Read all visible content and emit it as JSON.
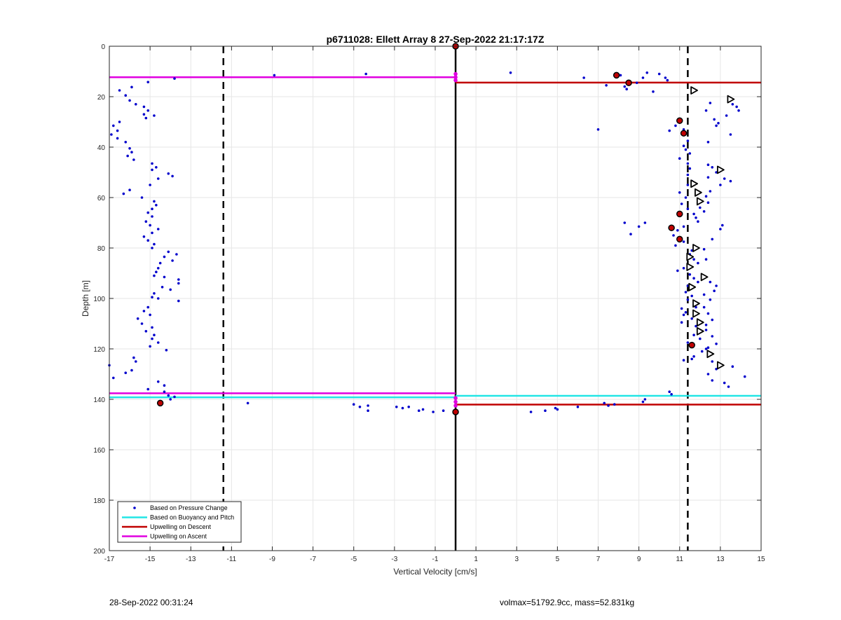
{
  "chart_data": {
    "type": "scatter",
    "title": "p6711028: Ellett Array 8 27-Sep-2022 21:17:17Z",
    "xlabel": "Vertical Velocity [cm/s]",
    "ylabel": "Depth [m]",
    "xlim": [
      -17,
      15
    ],
    "ylim": [
      0,
      200
    ],
    "y_reversed": true,
    "xticks": [
      -17,
      -15,
      -13,
      -11,
      -9,
      -7,
      -5,
      -3,
      -1,
      1,
      3,
      5,
      7,
      9,
      11,
      13,
      15
    ],
    "yticks": [
      0,
      20,
      40,
      60,
      80,
      100,
      120,
      140,
      160,
      180,
      200
    ],
    "grid": true,
    "legend_position": "bottom-left",
    "legend": [
      {
        "label": "Based on Pressure Change",
        "color": "#0000cc",
        "style": "dot"
      },
      {
        "label": "Based on Buoyancy and Pitch",
        "color": "#22e5e5",
        "style": "line"
      },
      {
        "label": "Upwelling on Descent",
        "color": "#c00000",
        "style": "line"
      },
      {
        "label": "Upwelling on Ascent",
        "color": "#e000e0",
        "style": "line"
      }
    ],
    "reference_lines": {
      "dashed_x": [
        -11.4,
        11.4
      ],
      "zero_x": 0
    },
    "hlines": [
      {
        "series": "Upwelling on Ascent",
        "color": "#e000e0",
        "x": [
          -17,
          0
        ],
        "y": 12.3
      },
      {
        "series": "Upwelling on Descent",
        "color": "#c00000",
        "x": [
          0,
          15
        ],
        "y": 14.4
      },
      {
        "series": "Upwelling on Ascent",
        "color": "#e000e0",
        "x": [
          -17,
          0
        ],
        "y": 137.6
      },
      {
        "series": "Based on Buoyancy and Pitch",
        "color": "#22e5e5",
        "x": [
          -17,
          0
        ],
        "y": 139.2
      },
      {
        "series": "Based on Buoyancy and Pitch",
        "color": "#22e5e5",
        "x": [
          0,
          15
        ],
        "y": 138.6
      },
      {
        "series": "Upwelling on Descent",
        "color": "#c00000",
        "x": [
          0,
          15
        ],
        "y": 142.1
      }
    ],
    "ascent_markers": [
      {
        "x": 0,
        "y": 11.0
      },
      {
        "x": 0,
        "y": 12.3
      },
      {
        "x": 0,
        "y": 13.5
      },
      {
        "x": 0,
        "y": 139.5
      },
      {
        "x": 0,
        "y": 141.0
      },
      {
        "x": 0,
        "y": 142.5
      }
    ],
    "descent_markers": [
      {
        "x": 0,
        "y": 0
      },
      {
        "x": 7.9,
        "y": 11.5
      },
      {
        "x": 8.5,
        "y": 14.5
      },
      {
        "x": 11.0,
        "y": 29.5
      },
      {
        "x": 11.2,
        "y": 34.5
      },
      {
        "x": 11.0,
        "y": 66.5
      },
      {
        "x": 10.6,
        "y": 72.0
      },
      {
        "x": 11.0,
        "y": 76.5
      },
      {
        "x": 11.6,
        "y": 118.5
      },
      {
        "x": -14.5,
        "y": 141.5
      },
      {
        "x": 0,
        "y": 145.0
      }
    ],
    "buoyancy_markers": [
      {
        "x": 11.7,
        "y": 17.5
      },
      {
        "x": 13.5,
        "y": 21.0
      },
      {
        "x": 13.0,
        "y": 49.0
      },
      {
        "x": 11.7,
        "y": 54.5
      },
      {
        "x": 11.9,
        "y": 58.0
      },
      {
        "x": 12.0,
        "y": 61.5
      },
      {
        "x": 11.8,
        "y": 80.0
      },
      {
        "x": 11.5,
        "y": 83.5
      },
      {
        "x": 11.5,
        "y": 87.5
      },
      {
        "x": 12.2,
        "y": 91.5
      },
      {
        "x": 11.6,
        "y": 95.5
      },
      {
        "x": 11.8,
        "y": 102.0
      },
      {
        "x": 11.8,
        "y": 106.0
      },
      {
        "x": 12.0,
        "y": 109.5
      },
      {
        "x": 12.0,
        "y": 113.0
      },
      {
        "x": 12.5,
        "y": 122.0
      },
      {
        "x": 13.0,
        "y": 126.5
      }
    ],
    "pressure_points": [
      [
        -13.8,
        12.8
      ],
      [
        -15.1,
        14.2
      ],
      [
        -16.5,
        17.5
      ],
      [
        -15.9,
        16.2
      ],
      [
        -16.2,
        19.5
      ],
      [
        -16.0,
        21.5
      ],
      [
        -15.7,
        23.0
      ],
      [
        -15.3,
        24.0
      ],
      [
        -15.1,
        25.5
      ],
      [
        -15.3,
        27.0
      ],
      [
        -14.8,
        27.5
      ],
      [
        -15.2,
        28.5
      ],
      [
        -16.5,
        30.0
      ],
      [
        -16.8,
        31.5
      ],
      [
        -16.6,
        33.5
      ],
      [
        -16.9,
        35.0
      ],
      [
        -16.6,
        36.5
      ],
      [
        -16.2,
        38.0
      ],
      [
        -16.0,
        40.5
      ],
      [
        -15.9,
        42.0
      ],
      [
        -16.1,
        43.5
      ],
      [
        -15.8,
        45.0
      ],
      [
        -14.9,
        46.5
      ],
      [
        -14.7,
        48.0
      ],
      [
        -14.9,
        49.0
      ],
      [
        -14.1,
        50.5
      ],
      [
        -13.9,
        51.5
      ],
      [
        -14.6,
        52.5
      ],
      [
        -15.0,
        55.0
      ],
      [
        -16.0,
        57.0
      ],
      [
        -16.3,
        58.5
      ],
      [
        -15.4,
        60.0
      ],
      [
        -14.8,
        61.5
      ],
      [
        -14.7,
        63.0
      ],
      [
        -14.9,
        64.5
      ],
      [
        -15.1,
        66.0
      ],
      [
        -14.9,
        67.5
      ],
      [
        -15.2,
        69.5
      ],
      [
        -15.0,
        71.0
      ],
      [
        -14.6,
        72.5
      ],
      [
        -14.9,
        74.0
      ],
      [
        -15.3,
        75.5
      ],
      [
        -15.1,
        77.0
      ],
      [
        -14.8,
        78.5
      ],
      [
        -14.9,
        80.0
      ],
      [
        -14.1,
        81.5
      ],
      [
        -13.7,
        82.5
      ],
      [
        -14.3,
        83.5
      ],
      [
        -13.9,
        85.0
      ],
      [
        -14.5,
        86.0
      ],
      [
        -14.6,
        88.0
      ],
      [
        -14.7,
        89.5
      ],
      [
        -14.8,
        91.0
      ],
      [
        -14.3,
        91.5
      ],
      [
        -13.6,
        92.5
      ],
      [
        -13.6,
        94.0
      ],
      [
        -14.4,
        95.5
      ],
      [
        -14.0,
        96.5
      ],
      [
        -14.8,
        98.0
      ],
      [
        -14.9,
        99.5
      ],
      [
        -14.6,
        100.0
      ],
      [
        -13.6,
        101.0
      ],
      [
        -15.1,
        103.5
      ],
      [
        -15.3,
        105.0
      ],
      [
        -15.0,
        106.5
      ],
      [
        -15.6,
        108.0
      ],
      [
        -15.4,
        110.0
      ],
      [
        -14.9,
        111.5
      ],
      [
        -15.2,
        113.0
      ],
      [
        -14.8,
        114.5
      ],
      [
        -14.9,
        116.0
      ],
      [
        -14.6,
        117.5
      ],
      [
        -15.0,
        119.0
      ],
      [
        -14.2,
        120.5
      ],
      [
        -15.8,
        123.5
      ],
      [
        -15.7,
        125.0
      ],
      [
        -17.0,
        126.5
      ],
      [
        -15.9,
        128.5
      ],
      [
        -16.2,
        129.5
      ],
      [
        -16.8,
        131.5
      ],
      [
        -14.6,
        133.0
      ],
      [
        -14.3,
        134.5
      ],
      [
        -15.1,
        136.0
      ],
      [
        -14.3,
        137.0
      ],
      [
        -14.1,
        138.5
      ],
      [
        -14.0,
        140.0
      ],
      [
        -13.8,
        139.0
      ],
      [
        -10.2,
        141.5
      ],
      [
        -8.9,
        11.5
      ],
      [
        -4.4,
        11.0
      ],
      [
        -5.0,
        142.0
      ],
      [
        -4.7,
        143.0
      ],
      [
        -4.3,
        142.5
      ],
      [
        -4.3,
        144.5
      ],
      [
        -2.9,
        143.0
      ],
      [
        -2.6,
        143.5
      ],
      [
        -2.3,
        143.0
      ],
      [
        -1.8,
        144.5
      ],
      [
        -1.6,
        144.0
      ],
      [
        -1.1,
        145.0
      ],
      [
        -0.6,
        144.5
      ],
      [
        2.7,
        10.5
      ],
      [
        3.7,
        145.0
      ],
      [
        4.4,
        144.5
      ],
      [
        4.9,
        143.5
      ],
      [
        5.0,
        144.0
      ],
      [
        6.0,
        143.0
      ],
      [
        6.3,
        12.5
      ],
      [
        7.0,
        33.0
      ],
      [
        7.3,
        141.5
      ],
      [
        7.5,
        142.5
      ],
      [
        7.8,
        142.0
      ],
      [
        7.4,
        15.5
      ],
      [
        8.1,
        11.5
      ],
      [
        8.3,
        16.0
      ],
      [
        8.4,
        17.0
      ],
      [
        8.9,
        14.5
      ],
      [
        9.2,
        12.5
      ],
      [
        9.4,
        10.5
      ],
      [
        9.7,
        18.0
      ],
      [
        10.0,
        11.0
      ],
      [
        10.3,
        12.5
      ],
      [
        10.4,
        13.5
      ],
      [
        9.2,
        141.0
      ],
      [
        9.3,
        140.0
      ],
      [
        10.5,
        137.0
      ],
      [
        10.6,
        138.0
      ],
      [
        8.3,
        70.0
      ],
      [
        8.6,
        74.5
      ],
      [
        9.0,
        71.5
      ],
      [
        9.3,
        70.0
      ],
      [
        10.5,
        33.5
      ],
      [
        10.8,
        31.5
      ],
      [
        11.2,
        33.0
      ],
      [
        11.4,
        37.5
      ],
      [
        11.2,
        39.5
      ],
      [
        11.3,
        41.0
      ],
      [
        11.5,
        42.5
      ],
      [
        11.0,
        44.5
      ],
      [
        11.4,
        46.5
      ],
      [
        11.5,
        48.5
      ],
      [
        11.4,
        51.0
      ],
      [
        11.6,
        53.5
      ],
      [
        11.4,
        55.0
      ],
      [
        11.0,
        58.0
      ],
      [
        11.3,
        60.0
      ],
      [
        11.1,
        62.5
      ],
      [
        11.4,
        64.5
      ],
      [
        11.7,
        66.5
      ],
      [
        11.8,
        68.0
      ],
      [
        11.9,
        69.5
      ],
      [
        11.2,
        71.5
      ],
      [
        10.9,
        73.0
      ],
      [
        10.7,
        75.0
      ],
      [
        11.2,
        77.5
      ],
      [
        10.8,
        79.0
      ],
      [
        11.6,
        81.0
      ],
      [
        11.5,
        82.5
      ],
      [
        11.7,
        84.5
      ],
      [
        11.9,
        86.0
      ],
      [
        11.2,
        88.0
      ],
      [
        10.9,
        89.0
      ],
      [
        11.5,
        90.5
      ],
      [
        11.7,
        92.0
      ],
      [
        11.9,
        93.5
      ],
      [
        11.4,
        95.0
      ],
      [
        11.3,
        97.5
      ],
      [
        11.6,
        99.0
      ],
      [
        11.4,
        100.5
      ],
      [
        11.8,
        103.5
      ],
      [
        11.1,
        104.0
      ],
      [
        11.3,
        105.5
      ],
      [
        11.2,
        106.5
      ],
      [
        11.6,
        108.0
      ],
      [
        11.1,
        109.5
      ],
      [
        11.8,
        111.0
      ],
      [
        12.3,
        112.5
      ],
      [
        11.7,
        114.5
      ],
      [
        12.0,
        116.0
      ],
      [
        11.4,
        117.5
      ],
      [
        12.4,
        119.5
      ],
      [
        12.1,
        121.0
      ],
      [
        11.7,
        123.0
      ],
      [
        11.2,
        124.5
      ],
      [
        11.6,
        124.0
      ],
      [
        12.6,
        125.0
      ],
      [
        12.8,
        128.0
      ],
      [
        12.4,
        130.0
      ],
      [
        12.6,
        132.5
      ],
      [
        13.2,
        133.5
      ],
      [
        13.4,
        135.0
      ],
      [
        13.6,
        127.0
      ],
      [
        14.2,
        131.0
      ],
      [
        12.5,
        22.5
      ],
      [
        12.3,
        25.5
      ],
      [
        13.8,
        24.0
      ],
      [
        13.9,
        25.5
      ],
      [
        13.6,
        23.0
      ],
      [
        12.7,
        29.0
      ],
      [
        12.9,
        30.5
      ],
      [
        12.8,
        31.5
      ],
      [
        13.3,
        27.5
      ],
      [
        13.5,
        35.0
      ],
      [
        12.4,
        38.0
      ],
      [
        12.4,
        47.0
      ],
      [
        12.6,
        48.0
      ],
      [
        12.8,
        50.0
      ],
      [
        12.4,
        52.0
      ],
      [
        13.2,
        52.5
      ],
      [
        13.5,
        53.5
      ],
      [
        13.0,
        55.0
      ],
      [
        12.5,
        57.5
      ],
      [
        12.3,
        59.5
      ],
      [
        12.4,
        62.0
      ],
      [
        12.0,
        64.0
      ],
      [
        12.2,
        65.5
      ],
      [
        13.1,
        71.0
      ],
      [
        13.0,
        72.5
      ],
      [
        12.6,
        76.5
      ],
      [
        12.2,
        80.5
      ],
      [
        12.3,
        84.5
      ],
      [
        12.5,
        93.5
      ],
      [
        12.8,
        95.0
      ],
      [
        12.7,
        97.0
      ],
      [
        12.2,
        98.5
      ],
      [
        12.5,
        100.5
      ],
      [
        12.2,
        103.5
      ],
      [
        12.4,
        106.0
      ],
      [
        12.6,
        108.5
      ],
      [
        12.3,
        110.5
      ],
      [
        12.8,
        118.0
      ],
      [
        12.3,
        120.0
      ],
      [
        12.6,
        115.0
      ]
    ]
  },
  "footer": {
    "timestamp": "28-Sep-2022 00:31:24",
    "summary": "volmax=51792.9cc, mass=52.831kg"
  }
}
